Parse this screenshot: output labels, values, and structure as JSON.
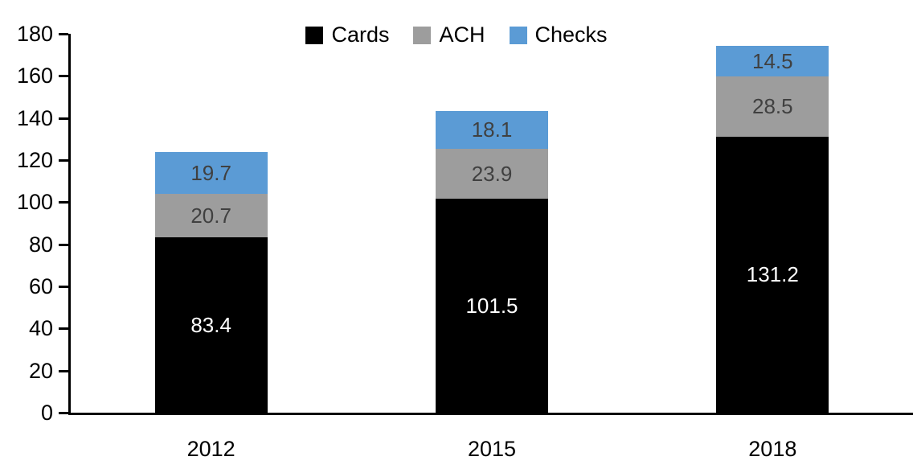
{
  "chart_data": {
    "type": "bar",
    "stacked": true,
    "title": "",
    "xlabel": "",
    "ylabel": "",
    "categories": [
      "2012",
      "2015",
      "2018"
    ],
    "series": [
      {
        "name": "Cards",
        "color": "#000000",
        "label_color": "#ffffff",
        "values": [
          83.4,
          101.5,
          131.2
        ]
      },
      {
        "name": "ACH",
        "color": "#9d9d9d",
        "label_color": "#404040",
        "values": [
          20.7,
          23.9,
          28.5
        ]
      },
      {
        "name": "Checks",
        "color": "#5b9bd5",
        "label_color": "#404040",
        "values": [
          19.7,
          18.1,
          14.5
        ]
      }
    ],
    "stack_totals": [
      123.8,
      143.5,
      174.2
    ],
    "ylim": [
      0,
      180
    ],
    "yticks": [
      0,
      20,
      40,
      60,
      80,
      100,
      120,
      140,
      160,
      180
    ],
    "legend_position": "top-center",
    "legend_entries": [
      "Cards",
      "ACH",
      "Checks"
    ],
    "grid": false,
    "data_labels_visible": true
  }
}
